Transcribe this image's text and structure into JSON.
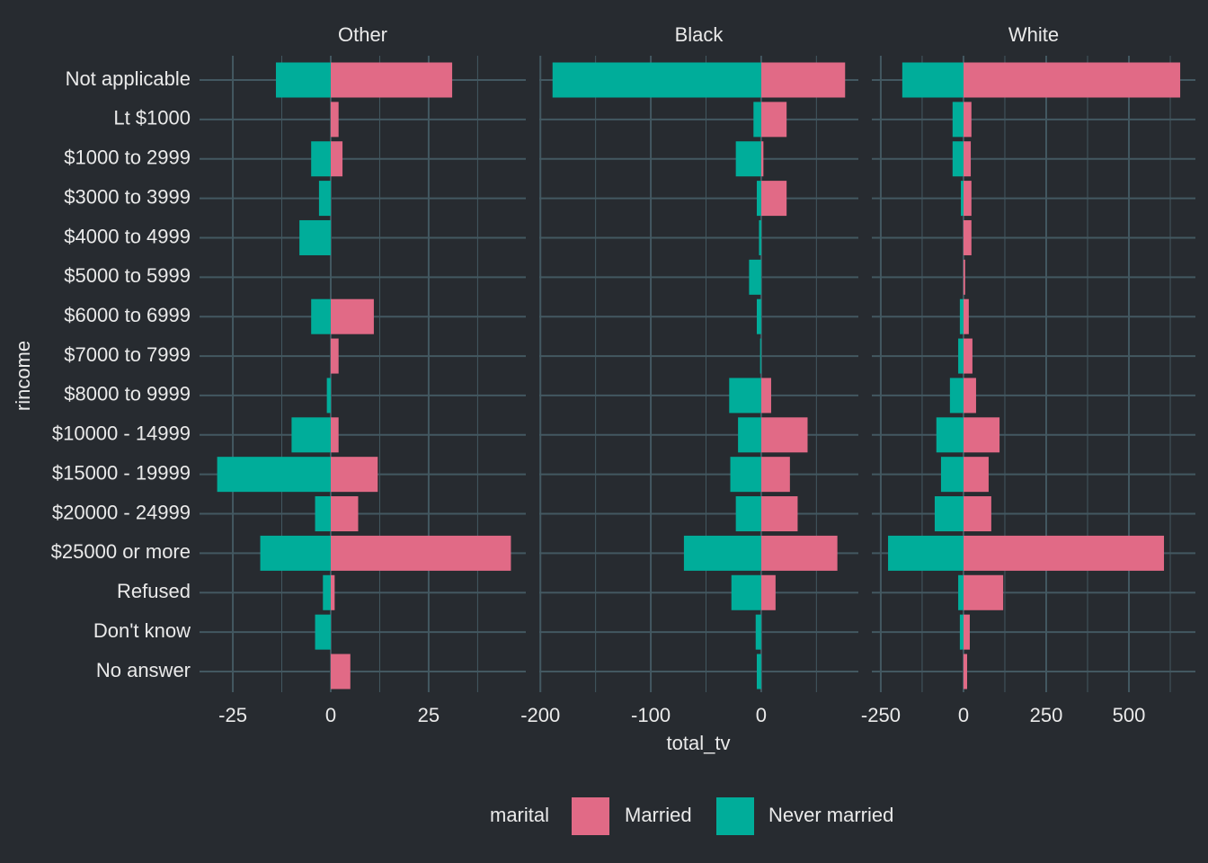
{
  "chart_data": {
    "type": "bar",
    "orientation": "horizontal",
    "xlabel": "total_tv",
    "ylabel": "rincome",
    "legend_title": "marital",
    "legend_position": "bottom",
    "grid": true,
    "categories": [
      "Not applicable",
      "Lt $1000",
      "$1000 to 2999",
      "$3000 to 3999",
      "$4000 to 4999",
      "$5000 to 5999",
      "$6000 to 6999",
      "$7000 to 7999",
      "$8000 to 9999",
      "$10000 - 14999",
      "$15000 - 19999",
      "$20000 - 24999",
      "$25000 or more",
      "Refused",
      "Don't know",
      "No answer"
    ],
    "facets": [
      {
        "title": "Other",
        "xlim": [
          -33.5,
          49.8
        ],
        "xticks": [
          -25,
          0,
          25
        ],
        "series": [
          {
            "name": "Married",
            "color": "#e16a86",
            "values": [
              31,
              2,
              3,
              0,
              0,
              0,
              11,
              2,
              0,
              2,
              12,
              7,
              46,
              1,
              0,
              5
            ]
          },
          {
            "name": "Never married",
            "color": "#00ad9a",
            "values": [
              -14,
              0,
              -5,
              -3,
              -8,
              0,
              -5,
              0,
              -1,
              -10,
              -29,
              -4,
              -18,
              -2,
              -4,
              0
            ]
          }
        ]
      },
      {
        "title": "Black",
        "xlim": [
          -201,
          88
        ],
        "xticks": [
          -200,
          -100,
          0
        ],
        "series": [
          {
            "name": "Married",
            "color": "#e16a86",
            "values": [
              76,
              23,
              2,
              23,
              0,
              0,
              0,
              0,
              9,
              42,
              26,
              33,
              69,
              13,
              0,
              0
            ]
          },
          {
            "name": "Never married",
            "color": "#00ad9a",
            "values": [
              -189,
              -7,
              -23,
              -4,
              -2,
              -11,
              -4,
              -1,
              -29,
              -21,
              -28,
              -23,
              -70,
              -27,
              -5,
              -4
            ]
          }
        ]
      },
      {
        "title": "White",
        "xlim": [
          -277,
          701
        ],
        "xticks": [
          -250,
          0,
          250,
          500
        ],
        "series": [
          {
            "name": "Married",
            "color": "#e16a86",
            "values": [
              655,
              24,
              22,
              24,
              24,
              5,
              16,
              27,
              38,
              109,
              76,
              84,
              606,
              120,
              19,
              11
            ]
          },
          {
            "name": "Never married",
            "color": "#00ad9a",
            "values": [
              -185,
              -33,
              -33,
              -8,
              0,
              0,
              -11,
              -16,
              -41,
              -82,
              -68,
              -87,
              -228,
              -16,
              -11,
              0
            ]
          }
        ]
      }
    ]
  }
}
